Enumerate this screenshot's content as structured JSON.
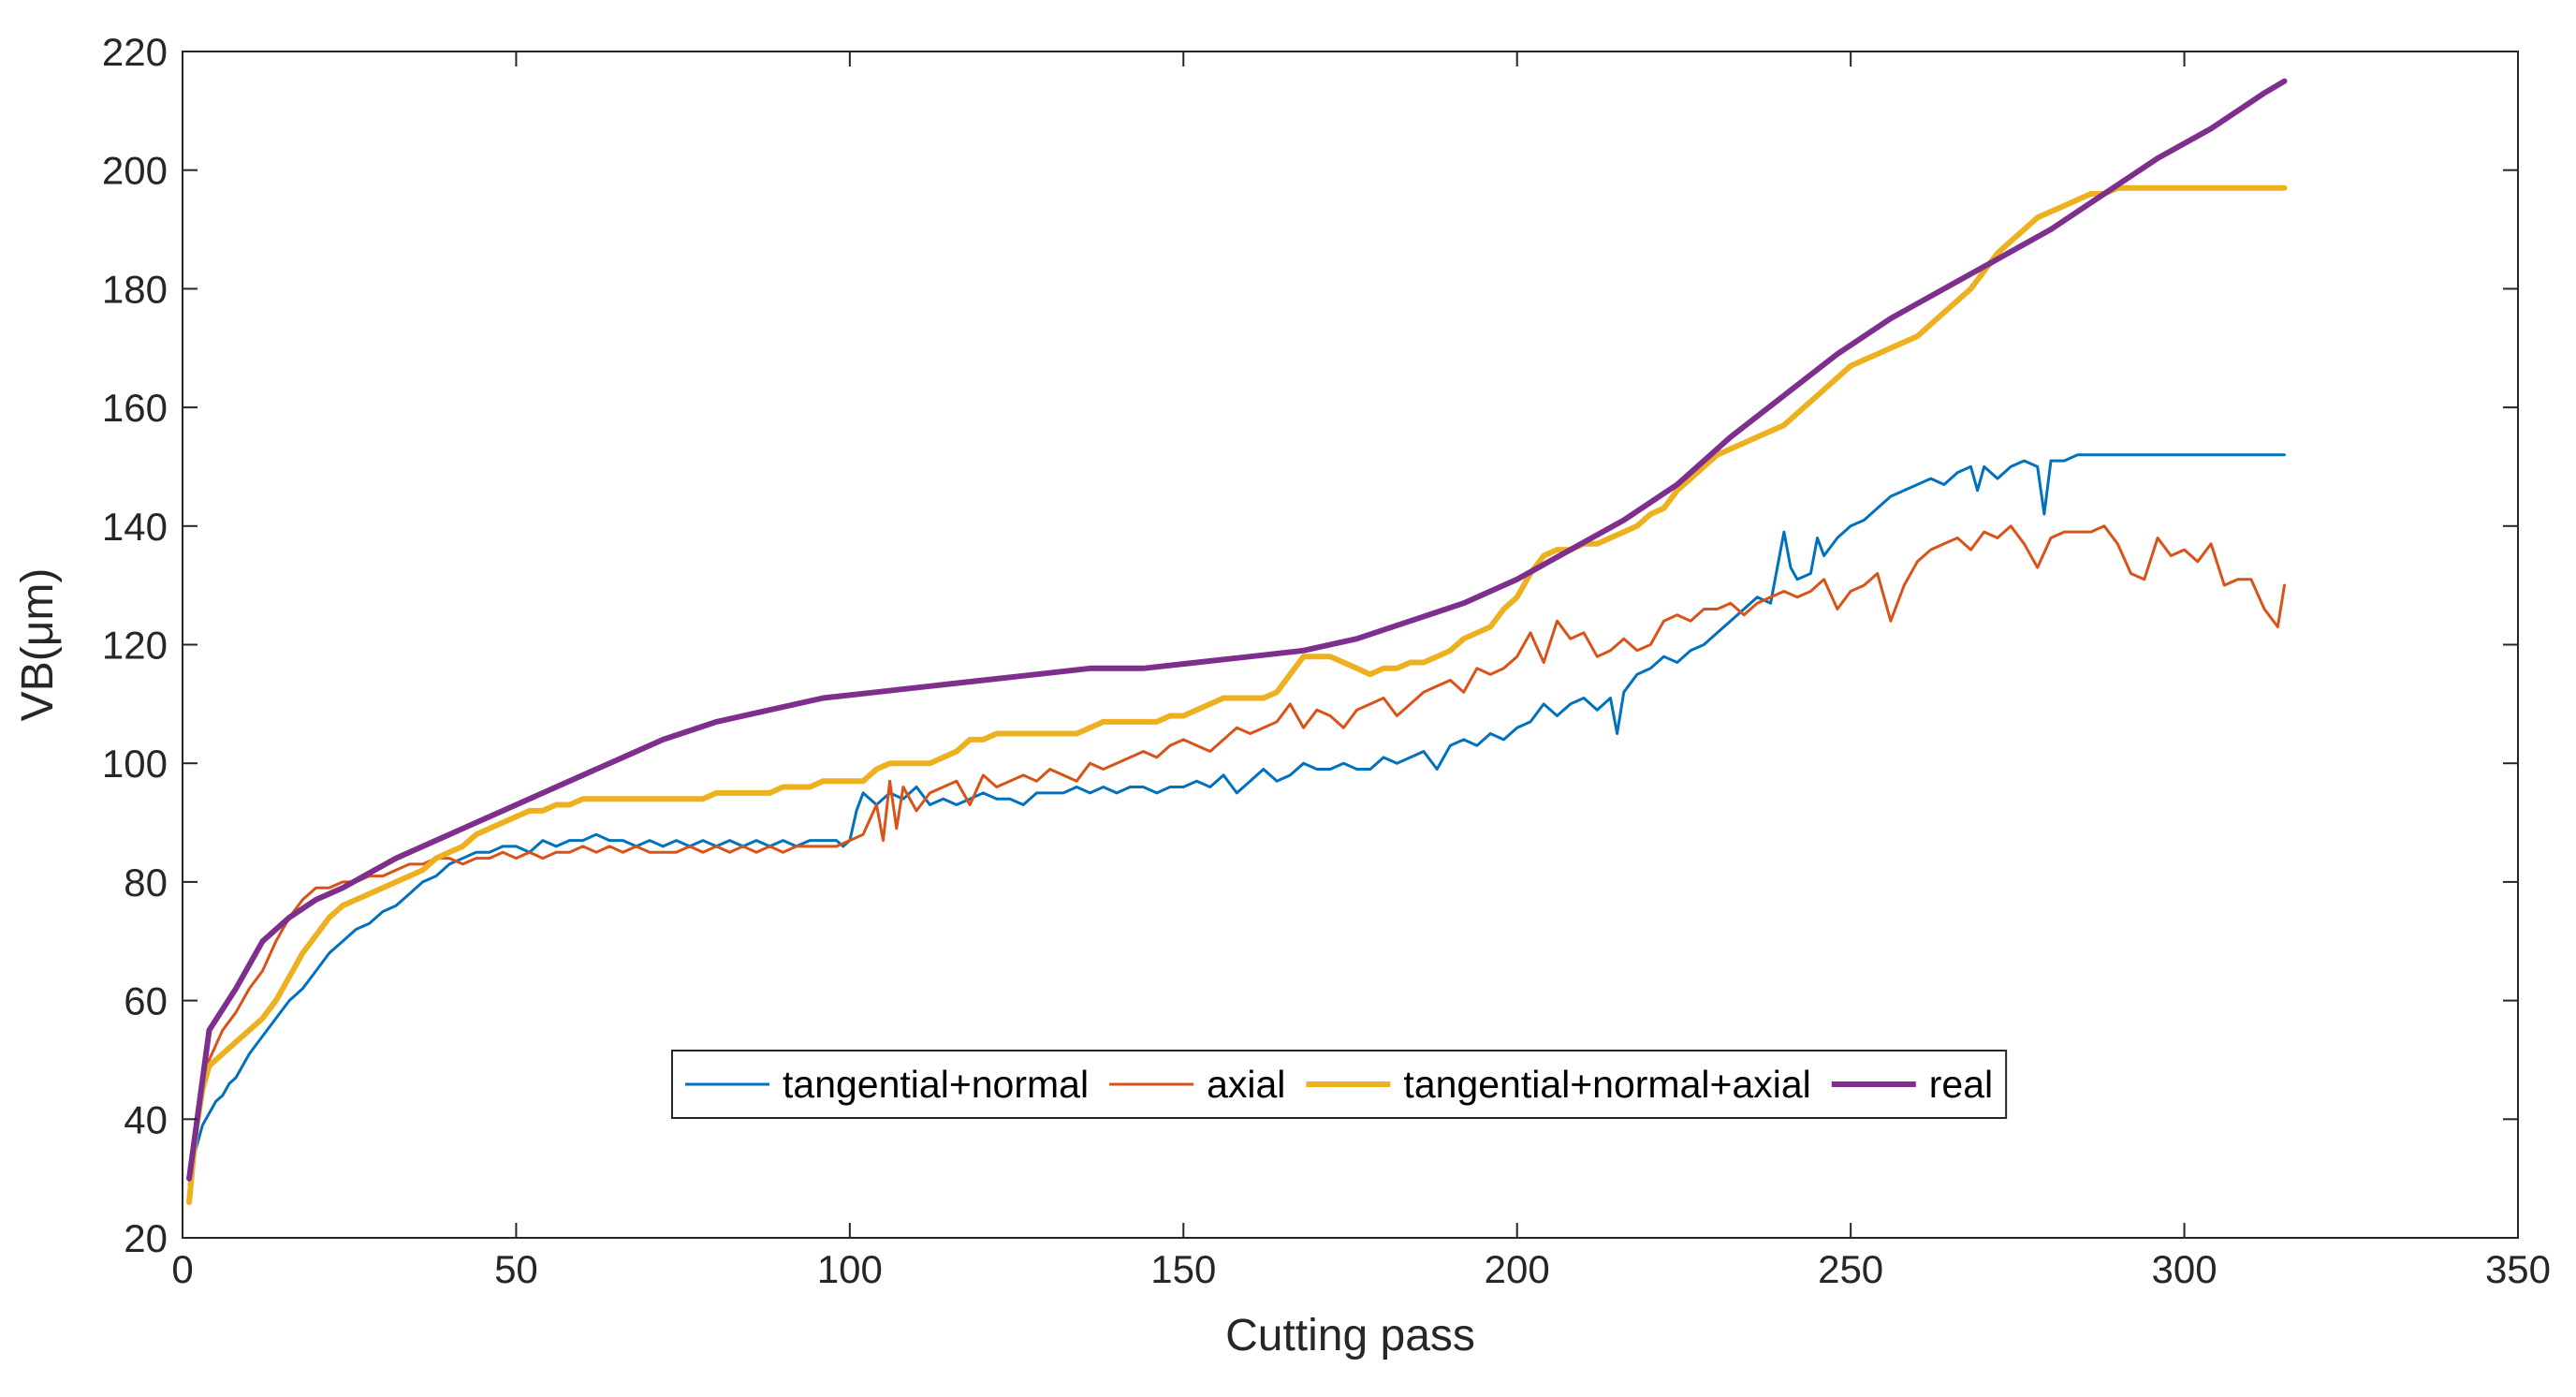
{
  "chart_data": {
    "type": "line",
    "title": "",
    "xlabel": "Cutting pass",
    "ylabel": "VB(μm)",
    "xlim": [
      0,
      350
    ],
    "ylim": [
      20,
      220
    ],
    "xticks": [
      0,
      50,
      100,
      150,
      200,
      250,
      300,
      350
    ],
    "yticks": [
      20,
      40,
      60,
      80,
      100,
      120,
      140,
      160,
      180,
      200,
      220
    ],
    "grid": false,
    "legend_position": "lower-center, single row",
    "colors": {
      "axes": "#262626",
      "legend_border": "#262626"
    },
    "series": [
      {
        "name": "tangential+normal",
        "color": "#0072BD",
        "width": "thin",
        "x": [
          1,
          2,
          3,
          4,
          5,
          6,
          7,
          8,
          10,
          12,
          14,
          16,
          18,
          20,
          22,
          24,
          26,
          28,
          30,
          32,
          34,
          36,
          38,
          40,
          42,
          44,
          46,
          48,
          50,
          52,
          54,
          56,
          58,
          60,
          62,
          64,
          66,
          68,
          70,
          72,
          74,
          76,
          78,
          80,
          82,
          84,
          86,
          88,
          90,
          92,
          94,
          96,
          98,
          99,
          100,
          101,
          102,
          104,
          106,
          108,
          110,
          112,
          114,
          116,
          118,
          120,
          122,
          124,
          126,
          128,
          130,
          132,
          134,
          136,
          138,
          140,
          142,
          144,
          146,
          148,
          150,
          152,
          154,
          156,
          158,
          160,
          162,
          164,
          166,
          168,
          170,
          172,
          174,
          176,
          178,
          180,
          182,
          184,
          186,
          188,
          190,
          192,
          194,
          196,
          198,
          200,
          202,
          204,
          206,
          208,
          210,
          212,
          214,
          215,
          216,
          218,
          220,
          222,
          224,
          226,
          228,
          230,
          232,
          234,
          236,
          238,
          240,
          241,
          242,
          244,
          245,
          246,
          248,
          250,
          252,
          254,
          256,
          258,
          260,
          262,
          264,
          266,
          268,
          269,
          270,
          272,
          274,
          276,
          278,
          279,
          280,
          282,
          284,
          286,
          288,
          290,
          292,
          294,
          296,
          298,
          300,
          302,
          304,
          306,
          308,
          310,
          312,
          314,
          315
        ],
        "y": [
          29,
          35,
          39,
          41,
          43,
          44,
          46,
          47,
          51,
          54,
          57,
          60,
          62,
          65,
          68,
          70,
          72,
          73,
          75,
          76,
          78,
          80,
          81,
          83,
          84,
          85,
          85,
          86,
          86,
          85,
          87,
          86,
          87,
          87,
          88,
          87,
          87,
          86,
          87,
          86,
          87,
          86,
          87,
          86,
          87,
          86,
          87,
          86,
          87,
          86,
          87,
          87,
          87,
          86,
          87,
          92,
          95,
          93,
          95,
          94,
          96,
          93,
          94,
          93,
          94,
          95,
          94,
          94,
          93,
          95,
          95,
          95,
          96,
          95,
          96,
          95,
          96,
          96,
          95,
          96,
          96,
          97,
          96,
          98,
          95,
          97,
          99,
          97,
          98,
          100,
          99,
          99,
          100,
          99,
          99,
          101,
          100,
          101,
          102,
          99,
          103,
          104,
          103,
          105,
          104,
          106,
          107,
          110,
          108,
          110,
          111,
          109,
          111,
          105,
          112,
          115,
          116,
          118,
          117,
          119,
          120,
          122,
          124,
          126,
          128,
          127,
          139,
          133,
          131,
          132,
          138,
          135,
          138,
          140,
          141,
          143,
          145,
          146,
          147,
          148,
          147,
          149,
          150,
          146,
          150,
          148,
          150,
          151,
          150,
          142,
          151,
          151,
          152,
          152,
          152,
          152,
          152,
          152,
          152,
          152,
          152,
          152,
          152,
          152,
          152,
          152,
          152,
          152,
          152
        ]
      },
      {
        "name": "axial",
        "color": "#D95319",
        "width": "thin",
        "x": [
          1,
          2,
          3,
          4,
          6,
          8,
          10,
          12,
          14,
          16,
          18,
          20,
          22,
          24,
          26,
          28,
          30,
          32,
          34,
          36,
          38,
          40,
          42,
          44,
          46,
          48,
          50,
          52,
          54,
          56,
          58,
          60,
          62,
          64,
          66,
          68,
          70,
          72,
          74,
          76,
          78,
          80,
          82,
          84,
          86,
          88,
          90,
          92,
          94,
          96,
          98,
          100,
          102,
          104,
          105,
          106,
          107,
          108,
          110,
          112,
          114,
          116,
          118,
          120,
          122,
          124,
          126,
          128,
          130,
          132,
          134,
          136,
          138,
          140,
          142,
          144,
          146,
          148,
          150,
          152,
          154,
          156,
          158,
          160,
          162,
          164,
          166,
          168,
          170,
          172,
          174,
          176,
          178,
          180,
          182,
          184,
          186,
          188,
          190,
          192,
          194,
          196,
          198,
          200,
          202,
          204,
          206,
          208,
          210,
          212,
          214,
          216,
          218,
          220,
          222,
          224,
          226,
          228,
          230,
          232,
          234,
          236,
          238,
          240,
          242,
          244,
          246,
          248,
          250,
          252,
          254,
          256,
          258,
          260,
          262,
          264,
          266,
          268,
          270,
          272,
          274,
          276,
          278,
          280,
          282,
          284,
          286,
          288,
          290,
          292,
          294,
          296,
          298,
          300,
          302,
          304,
          306,
          308,
          310,
          312,
          314,
          315
        ],
        "y": [
          27,
          38,
          46,
          50,
          55,
          58,
          62,
          65,
          70,
          74,
          77,
          79,
          79,
          80,
          80,
          81,
          81,
          82,
          83,
          83,
          84,
          84,
          83,
          84,
          84,
          85,
          84,
          85,
          84,
          85,
          85,
          86,
          85,
          86,
          85,
          86,
          85,
          85,
          85,
          86,
          85,
          86,
          85,
          86,
          85,
          86,
          85,
          86,
          86,
          86,
          86,
          87,
          88,
          93,
          87,
          97,
          89,
          96,
          92,
          95,
          96,
          97,
          93,
          98,
          96,
          97,
          98,
          97,
          99,
          98,
          97,
          100,
          99,
          100,
          101,
          102,
          101,
          103,
          104,
          103,
          102,
          104,
          106,
          105,
          106,
          107,
          110,
          106,
          109,
          108,
          106,
          109,
          110,
          111,
          108,
          110,
          112,
          113,
          114,
          112,
          116,
          115,
          116,
          118,
          122,
          117,
          124,
          121,
          122,
          118,
          119,
          121,
          119,
          120,
          124,
          125,
          124,
          126,
          126,
          127,
          125,
          127,
          128,
          129,
          128,
          129,
          131,
          126,
          129,
          130,
          132,
          124,
          130,
          134,
          136,
          137,
          138,
          136,
          139,
          138,
          140,
          137,
          133,
          138,
          139,
          139,
          139,
          140,
          137,
          132,
          131,
          138,
          135,
          136,
          134,
          137,
          130,
          131,
          131,
          126,
          123,
          130
        ]
      },
      {
        "name": "tangential+normal+axial",
        "color": "#EDB120",
        "width": "thick",
        "x": [
          1,
          2,
          3,
          4,
          6,
          8,
          10,
          12,
          14,
          16,
          18,
          20,
          22,
          24,
          26,
          28,
          30,
          32,
          34,
          36,
          38,
          40,
          42,
          44,
          46,
          48,
          50,
          52,
          54,
          56,
          58,
          60,
          62,
          64,
          66,
          68,
          70,
          72,
          74,
          76,
          78,
          80,
          82,
          84,
          86,
          88,
          90,
          92,
          94,
          96,
          98,
          100,
          102,
          104,
          106,
          108,
          110,
          112,
          114,
          116,
          118,
          120,
          122,
          124,
          126,
          128,
          130,
          132,
          134,
          136,
          138,
          140,
          142,
          144,
          146,
          148,
          150,
          152,
          154,
          156,
          158,
          160,
          162,
          164,
          166,
          168,
          170,
          172,
          174,
          176,
          178,
          180,
          182,
          184,
          186,
          188,
          190,
          192,
          194,
          196,
          198,
          200,
          202,
          204,
          206,
          208,
          210,
          212,
          214,
          216,
          218,
          220,
          222,
          224,
          226,
          228,
          230,
          232,
          234,
          236,
          238,
          240,
          242,
          244,
          246,
          248,
          250,
          252,
          254,
          256,
          258,
          260,
          262,
          264,
          266,
          268,
          270,
          272,
          274,
          276,
          278,
          280,
          282,
          284,
          286,
          288,
          290,
          292,
          294,
          296,
          298,
          300,
          302,
          304,
          306,
          308,
          310,
          312,
          314,
          315
        ],
        "y": [
          26,
          38,
          45,
          49,
          51,
          53,
          55,
          57,
          60,
          64,
          68,
          71,
          74,
          76,
          77,
          78,
          79,
          80,
          81,
          82,
          84,
          85,
          86,
          88,
          89,
          90,
          91,
          92,
          92,
          93,
          93,
          94,
          94,
          94,
          94,
          94,
          94,
          94,
          94,
          94,
          94,
          95,
          95,
          95,
          95,
          95,
          96,
          96,
          96,
          97,
          97,
          97,
          97,
          99,
          100,
          100,
          100,
          100,
          101,
          102,
          104,
          104,
          105,
          105,
          105,
          105,
          105,
          105,
          105,
          106,
          107,
          107,
          107,
          107,
          107,
          108,
          108,
          109,
          110,
          111,
          111,
          111,
          111,
          112,
          115,
          118,
          118,
          118,
          117,
          116,
          115,
          116,
          116,
          117,
          117,
          118,
          119,
          121,
          122,
          123,
          126,
          128,
          132,
          135,
          136,
          136,
          137,
          137,
          138,
          139,
          140,
          142,
          143,
          146,
          148,
          150,
          152,
          153,
          154,
          155,
          156,
          157,
          159,
          161,
          163,
          165,
          167,
          168,
          169,
          170,
          171,
          172,
          174,
          176,
          178,
          180,
          183,
          186,
          188,
          190,
          192,
          193,
          194,
          195,
          196,
          196,
          197,
          197,
          197,
          197,
          197,
          197,
          197,
          197,
          197,
          197,
          197,
          197,
          197,
          197
        ]
      },
      {
        "name": "real",
        "color": "#7E2F8E",
        "width": "thick",
        "x": [
          1,
          4,
          8,
          12,
          16,
          20,
          24,
          32,
          40,
          48,
          56,
          64,
          72,
          80,
          88,
          96,
          104,
          112,
          120,
          128,
          136,
          144,
          152,
          160,
          168,
          176,
          184,
          192,
          200,
          208,
          216,
          224,
          232,
          240,
          248,
          256,
          264,
          272,
          280,
          288,
          296,
          304,
          312,
          315
        ],
        "y": [
          30,
          55,
          62,
          70,
          74,
          77,
          79,
          84,
          88,
          92,
          96,
          100,
          104,
          107,
          109,
          111,
          112,
          113,
          114,
          115,
          116,
          116,
          117,
          118,
          119,
          121,
          124,
          127,
          131,
          136,
          141,
          147,
          155,
          162,
          169,
          175,
          180,
          185,
          190,
          196,
          202,
          207,
          213,
          215
        ]
      }
    ]
  }
}
